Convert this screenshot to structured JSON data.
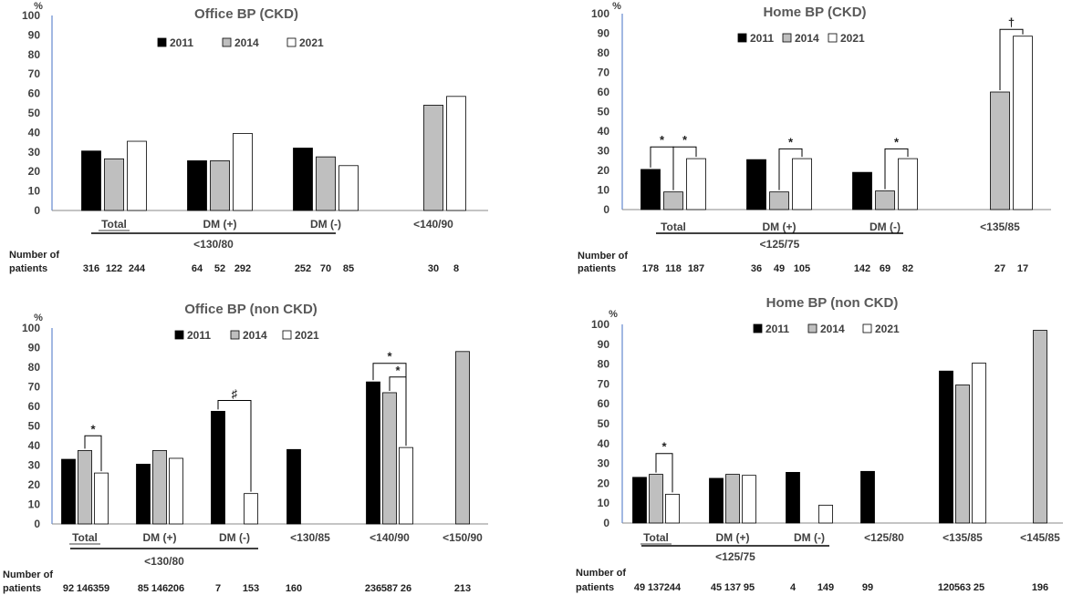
{
  "chart_data": [
    {
      "type": "bar",
      "title": "Office BP (CKD)",
      "ylabel": "%",
      "ylim": [
        0,
        100
      ],
      "yticks": [
        0,
        10,
        20,
        30,
        40,
        50,
        60,
        70,
        80,
        90,
        100
      ],
      "legend": "top",
      "grid": false,
      "series_names": [
        "2011",
        "2014",
        "2021"
      ],
      "series_colors": [
        "#000000",
        "#bfbfbf",
        "#ffffff"
      ],
      "categories": [
        "Total",
        "DM (+)",
        "DM (-)",
        "<140/90"
      ],
      "values": [
        [
          30.5,
          26.5,
          35.5
        ],
        [
          25.5,
          25.5,
          39.5
        ],
        [
          32,
          27.5,
          23
        ],
        [
          null,
          54,
          58.5
        ]
      ],
      "group_label": "<130/80",
      "group_span": [
        0,
        2
      ],
      "patients_label": [
        "Number of",
        "patients"
      ],
      "patients": [
        [
          "316",
          "122",
          "244"
        ],
        [
          "64",
          "52",
          "292"
        ],
        [
          "252",
          "70",
          "85"
        ],
        [
          "",
          "30",
          "8"
        ]
      ],
      "annotations": []
    },
    {
      "type": "bar",
      "title": "Home BP (CKD)",
      "ylabel": "%",
      "ylim": [
        0,
        100
      ],
      "yticks": [
        0,
        10,
        20,
        30,
        40,
        50,
        60,
        70,
        80,
        90,
        100
      ],
      "legend": "top",
      "grid": false,
      "series_names": [
        "2011",
        "2014",
        "2021"
      ],
      "series_colors": [
        "#000000",
        "#bfbfbf",
        "#ffffff"
      ],
      "categories": [
        "Total",
        "DM (+)",
        "DM (-)",
        "<135/85"
      ],
      "values": [
        [
          20.5,
          9,
          26
        ],
        [
          25.5,
          9,
          26
        ],
        [
          19,
          9.5,
          26
        ],
        [
          null,
          60,
          88.5
        ]
      ],
      "group_label": "<125/75",
      "group_span": [
        0,
        2
      ],
      "patients_label": [
        "Number of",
        "patients"
      ],
      "patients": [
        [
          "178",
          "118",
          "187"
        ],
        [
          "36",
          "49",
          "105"
        ],
        [
          "142",
          "69",
          "82"
        ],
        [
          "",
          "27",
          "17"
        ]
      ],
      "annotations": [
        {
          "cat": 0,
          "from": 0,
          "to": 1,
          "symbol": "*",
          "height": 32
        },
        {
          "cat": 0,
          "from": 1,
          "to": 2,
          "symbol": "*",
          "height": 32
        },
        {
          "cat": 1,
          "from": 1,
          "to": 2,
          "symbol": "*",
          "height": 31
        },
        {
          "cat": 2,
          "from": 1,
          "to": 2,
          "symbol": "*",
          "height": 31
        },
        {
          "cat": 3,
          "from": 1,
          "to": 2,
          "symbol": "†",
          "height": 92
        }
      ]
    },
    {
      "type": "bar",
      "title": "Office BP (non CKD)",
      "ylabel": "%",
      "ylim": [
        0,
        100
      ],
      "yticks": [
        0,
        10,
        20,
        30,
        40,
        50,
        60,
        70,
        80,
        90,
        100
      ],
      "legend": "top",
      "grid": false,
      "series_names": [
        "2011",
        "2014",
        "2021"
      ],
      "series_colors": [
        "#000000",
        "#bfbfbf",
        "#ffffff"
      ],
      "categories": [
        "Total",
        "DM (+)",
        "DM (-)",
        "<130/85",
        "<140/90",
        "<150/90"
      ],
      "values": [
        [
          33,
          37.5,
          26
        ],
        [
          30.5,
          37.5,
          33.5
        ],
        [
          57.5,
          null,
          15.5
        ],
        [
          38,
          null,
          null
        ],
        [
          72.5,
          67,
          39
        ],
        [
          null,
          88,
          null
        ]
      ],
      "group_label": "<130/80",
      "group_span": [
        0,
        2
      ],
      "patients_label": [
        "Number of",
        "patients"
      ],
      "patients": [
        [
          "92",
          "146",
          "359"
        ],
        [
          "85",
          "146",
          "206"
        ],
        [
          "7",
          "",
          "153"
        ],
        [
          "160",
          "",
          ""
        ],
        [
          "236",
          "587",
          "26"
        ],
        [
          "",
          "213",
          ""
        ]
      ],
      "annotations": [
        {
          "cat": 0,
          "from": 1,
          "to": 2,
          "symbol": "*",
          "height": 45
        },
        {
          "cat": 2,
          "from": 0,
          "to": 2,
          "symbol": "♯",
          "height": 63
        },
        {
          "cat": 4,
          "from": 0,
          "to": 2,
          "symbol": "*",
          "height": 82
        },
        {
          "cat": 4,
          "from": 1,
          "to": 2,
          "symbol": "*",
          "height": 75
        }
      ]
    },
    {
      "type": "bar",
      "title": "Home BP (non CKD)",
      "ylabel": "%",
      "ylim": [
        0,
        100
      ],
      "yticks": [
        0,
        10,
        20,
        30,
        40,
        50,
        60,
        70,
        80,
        90,
        100
      ],
      "legend": "top",
      "grid": false,
      "series_names": [
        "2011",
        "2014",
        "2021"
      ],
      "series_colors": [
        "#000000",
        "#bfbfbf",
        "#ffffff"
      ],
      "categories": [
        "Total",
        "DM (+)",
        "DM (-)",
        "<125/80",
        "<135/85",
        "<145/85"
      ],
      "values": [
        [
          23,
          24.5,
          14.5
        ],
        [
          22.5,
          24.5,
          24
        ],
        [
          25.5,
          null,
          9
        ],
        [
          26,
          null,
          null
        ],
        [
          76.5,
          69.5,
          80.5
        ],
        [
          null,
          97,
          null
        ]
      ],
      "group_label": "<125/75",
      "group_span": [
        0,
        2
      ],
      "patients_label": [
        "Number of",
        "patients"
      ],
      "patients": [
        [
          "49",
          "137",
          "244"
        ],
        [
          "45",
          "137",
          "95"
        ],
        [
          "4",
          "",
          "149"
        ],
        [
          "99",
          "",
          ""
        ],
        [
          "120",
          "563",
          "25"
        ],
        [
          "",
          "196",
          ""
        ]
      ],
      "annotations": [
        {
          "cat": 0,
          "from": 1,
          "to": 2,
          "symbol": "*",
          "height": 35
        }
      ]
    }
  ]
}
